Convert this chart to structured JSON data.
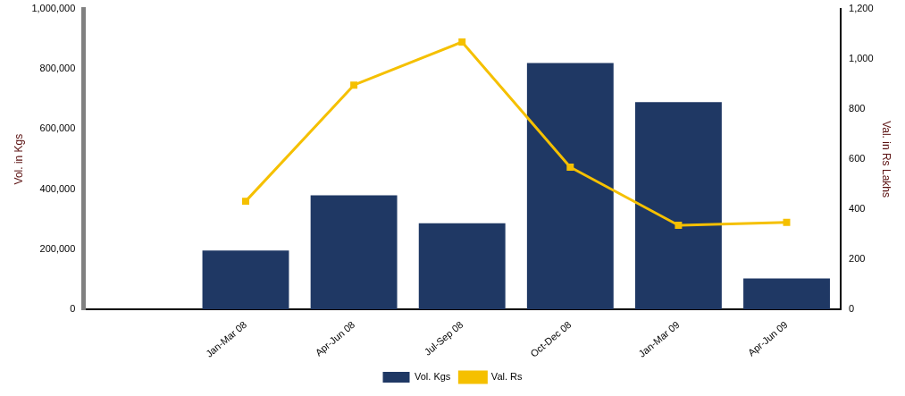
{
  "chart_data": {
    "type": "bar",
    "ylabel": "Vol. in Kgs",
    "y2label": "Val. in Rs Lakhs",
    "categories": [
      null,
      "Jan-Mar 08",
      "Apr-Jun 08",
      "Jul-Sep 08",
      "Oct-Dec 08",
      "Jan-Mar 09",
      "Apr-Jun 09"
    ],
    "series": [
      {
        "name": "Vol. Kgs",
        "color": "#1f3864",
        "values": [
          null,
          196000,
          380000,
          287000,
          820000,
          690000,
          103000
        ]
      },
      {
        "name": "Val. Rs",
        "type": "line",
        "axis": "y2",
        "color": "#f5c000",
        "marker": "square",
        "values": [
          null,
          432,
          896,
          1068,
          568,
          336,
          348
        ]
      }
    ],
    "ylim": [
      0,
      1000000
    ],
    "yticks": [
      {
        "value": 0,
        "label": "0"
      },
      {
        "value": 200000,
        "label": "200,000"
      },
      {
        "value": 400000,
        "label": "400,000"
      },
      {
        "value": 600000,
        "label": "600,000"
      },
      {
        "value": 800000,
        "label": "800,000"
      },
      {
        "value": 1000000,
        "label": "1,000,000"
      }
    ],
    "y2lim": [
      0,
      1200
    ],
    "y2ticks": [
      {
        "value": 0,
        "label": "0"
      },
      {
        "value": 200,
        "label": "200"
      },
      {
        "value": 400,
        "label": "400"
      },
      {
        "value": 600,
        "label": "600"
      },
      {
        "value": 800,
        "label": "800"
      },
      {
        "value": 1000,
        "label": "1,000"
      },
      {
        "value": 1200,
        "label": "1,200"
      }
    ],
    "grid": false,
    "legend": "bottom"
  }
}
